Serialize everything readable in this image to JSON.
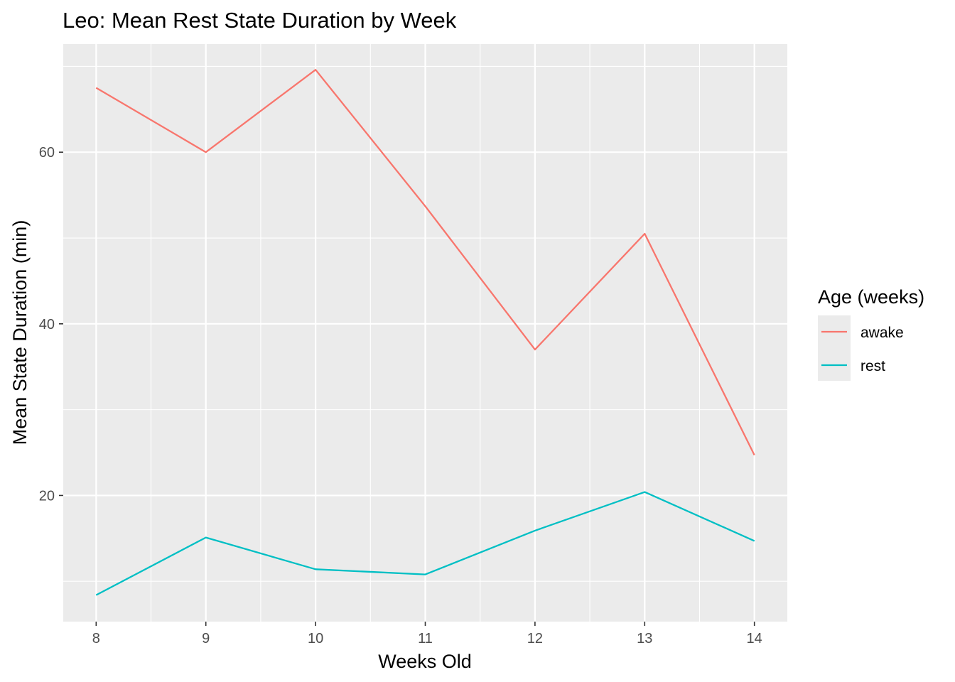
{
  "chart_data": {
    "type": "line",
    "title": "Leo: Mean Rest State Duration by Week",
    "xlabel": "Weeks Old",
    "ylabel": "Mean State Duration (min)",
    "x": [
      8,
      9,
      10,
      11,
      12,
      13,
      14
    ],
    "x_tick_labels": [
      "8",
      "9",
      "10",
      "11",
      "12",
      "13",
      "14"
    ],
    "y_tick_labels": [
      "20",
      "40",
      "60"
    ],
    "y_ticks": [
      20,
      40,
      60
    ],
    "xlim": [
      7.7,
      14.3
    ],
    "ylim": [
      5.3,
      72.6
    ],
    "grid": true,
    "legend": {
      "title": "Age (weeks)",
      "position": "right"
    },
    "series": [
      {
        "name": "awake",
        "color": "#F8766D",
        "values": [
          67.5,
          60.0,
          69.6,
          53.7,
          37.0,
          50.5,
          24.7
        ]
      },
      {
        "name": "rest",
        "color": "#00BFC4",
        "values": [
          8.4,
          15.1,
          11.4,
          10.8,
          15.9,
          20.4,
          14.7
        ]
      }
    ]
  }
}
